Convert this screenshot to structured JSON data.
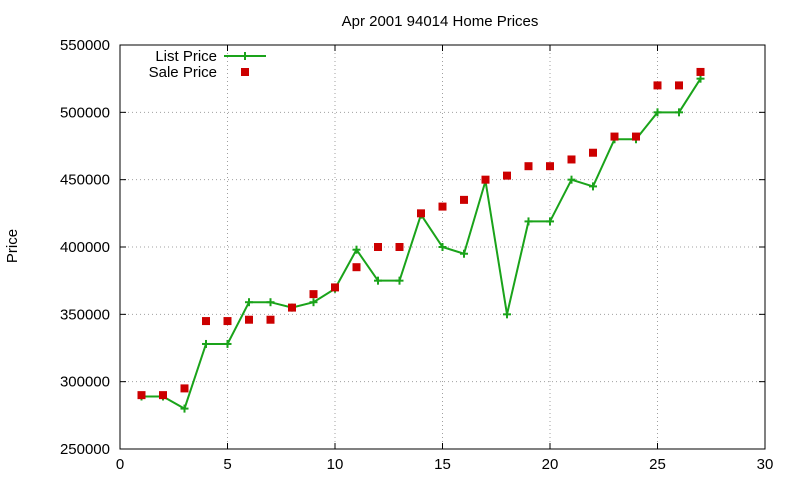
{
  "chart_data": {
    "type": "line",
    "title": "Apr 2001 94014 Home Prices",
    "xlabel": "",
    "ylabel": "Price",
    "xlim": [
      0,
      30
    ],
    "ylim": [
      250000,
      550000
    ],
    "xticks": [
      0,
      5,
      10,
      15,
      20,
      25,
      30
    ],
    "yticks": [
      250000,
      300000,
      350000,
      400000,
      450000,
      500000,
      550000
    ],
    "grid": true,
    "legend_position": "top-left",
    "series": [
      {
        "name": "List Price",
        "style": "line+cross",
        "color": "#1aa31a",
        "x": [
          1,
          2,
          3,
          4,
          5,
          6,
          7,
          8,
          9,
          10,
          11,
          12,
          13,
          14,
          15,
          16,
          17,
          18,
          19,
          20,
          21,
          22,
          23,
          24,
          25,
          26,
          27
        ],
        "values": [
          289000,
          289000,
          280000,
          328000,
          328000,
          359000,
          359000,
          355000,
          359000,
          369000,
          398000,
          375000,
          375000,
          424000,
          400000,
          395000,
          449000,
          350000,
          419000,
          419000,
          450000,
          445000,
          480000,
          480000,
          500000,
          500000,
          525000
        ]
      },
      {
        "name": "Sale Price",
        "style": "square-markers",
        "color": "#cc0000",
        "x": [
          1,
          2,
          3,
          4,
          5,
          6,
          7,
          8,
          9,
          10,
          11,
          12,
          13,
          14,
          15,
          16,
          17,
          18,
          19,
          20,
          21,
          22,
          23,
          24,
          25,
          26,
          27
        ],
        "values": [
          290000,
          290000,
          295000,
          345000,
          345000,
          346000,
          346000,
          355000,
          365000,
          370000,
          385000,
          400000,
          400000,
          425000,
          430000,
          435000,
          450000,
          453000,
          460000,
          460000,
          465000,
          470000,
          482000,
          482000,
          520000,
          520000,
          530000
        ]
      }
    ]
  }
}
